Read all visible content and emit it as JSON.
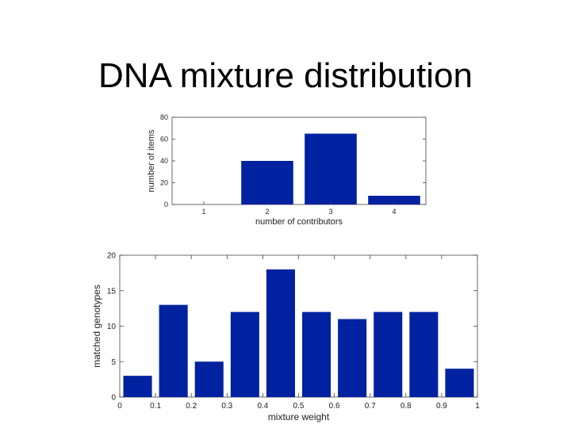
{
  "slide": {
    "title": "DNA mixture distribution"
  },
  "colors": {
    "bar": "#0022a0",
    "axis": "#444444"
  },
  "chart_data": [
    {
      "type": "bar",
      "categories": [
        "1",
        "2",
        "3",
        "4"
      ],
      "values": [
        0,
        40,
        65,
        8
      ],
      "xlabel": "number of contributors",
      "ylabel": "number of items",
      "ylim": [
        0,
        80
      ],
      "yticks": [
        0,
        20,
        40,
        60,
        80
      ],
      "grid": false
    },
    {
      "type": "bar",
      "x": [
        0.05,
        0.15,
        0.25,
        0.35,
        0.45,
        0.55,
        0.65,
        0.75,
        0.85,
        0.95
      ],
      "values": [
        3,
        13,
        5,
        12,
        18,
        12,
        11,
        12,
        12,
        4
      ],
      "xlabel": "mixture weight",
      "ylabel": "matched genotypes",
      "xlim": [
        0,
        1
      ],
      "ylim": [
        0,
        20
      ],
      "xticks": [
        "0",
        "0.1",
        "0.2",
        "0.3",
        "0.4",
        "0.5",
        "0.6",
        "0.7",
        "0.8",
        "0.9",
        "1"
      ],
      "yticks": [
        0,
        5,
        10,
        15,
        20
      ],
      "grid": false
    }
  ]
}
